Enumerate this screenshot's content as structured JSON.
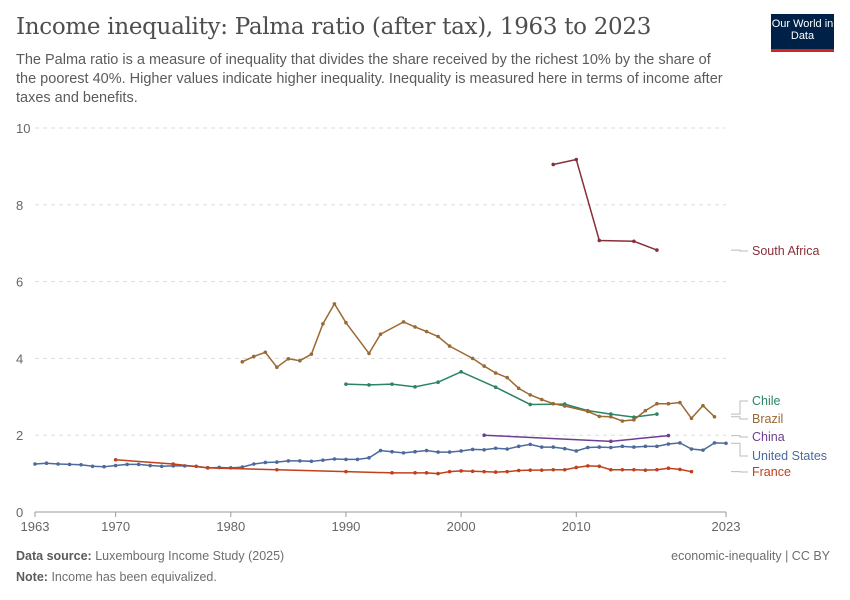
{
  "title": "Income inequality: Palma ratio (after tax), 1963 to 2023",
  "subtitle": "The Palma ratio is a measure of inequality that divides the share received by the richest 10% by the share of the poorest 40%. Higher values indicate higher inequality. Inequality is measured here in terms of income after taxes and benefits.",
  "logo": "Our World in Data",
  "footer": {
    "source_label": "Data source:",
    "source": "Luxembourg Income Study (2025)",
    "note_label": "Note:",
    "note": "Income has been equivalized.",
    "license": "economic-inequality | CC BY"
  },
  "chart_data": {
    "type": "line",
    "title": "Income inequality: Palma ratio (after tax), 1963 to 2023",
    "xlim": [
      1963,
      2023
    ],
    "ylim": [
      0,
      10
    ],
    "x_ticks": [
      "1963",
      "1970",
      "1980",
      "1990",
      "2000",
      "2010",
      "2023"
    ],
    "y_ticks": [
      "0",
      "2",
      "4",
      "6",
      "8",
      "10"
    ],
    "grid": true,
    "legend": "right-labels",
    "series": [
      {
        "name": "South Africa",
        "color": "#883039",
        "points": [
          [
            2008,
            9.05
          ],
          [
            2010,
            9.18
          ],
          [
            2012,
            7.07
          ],
          [
            2015,
            7.05
          ],
          [
            2017,
            6.82
          ]
        ]
      },
      {
        "name": "Chile",
        "color": "#2c8465",
        "points": [
          [
            1990,
            3.33
          ],
          [
            1992,
            3.31
          ],
          [
            1994,
            3.33
          ],
          [
            1996,
            3.26
          ],
          [
            1998,
            3.38
          ],
          [
            2000,
            3.65
          ],
          [
            2003,
            3.25
          ],
          [
            2006,
            2.8
          ],
          [
            2009,
            2.81
          ],
          [
            2011,
            2.64
          ],
          [
            2013,
            2.55
          ],
          [
            2015,
            2.47
          ],
          [
            2017,
            2.55
          ]
        ]
      },
      {
        "name": "Brazil",
        "color": "#9a6a33",
        "points": [
          [
            1981,
            3.91
          ],
          [
            1982,
            4.05
          ],
          [
            1983,
            4.16
          ],
          [
            1984,
            3.77
          ],
          [
            1985,
            3.99
          ],
          [
            1986,
            3.94
          ],
          [
            1987,
            4.11
          ],
          [
            1988,
            4.9
          ],
          [
            1989,
            5.42
          ],
          [
            1990,
            4.93
          ],
          [
            1992,
            4.13
          ],
          [
            1993,
            4.63
          ],
          [
            1995,
            4.95
          ],
          [
            1996,
            4.82
          ],
          [
            1997,
            4.7
          ],
          [
            1998,
            4.57
          ],
          [
            1999,
            4.32
          ],
          [
            2001,
            4.0
          ],
          [
            2002,
            3.8
          ],
          [
            2003,
            3.62
          ],
          [
            2004,
            3.5
          ],
          [
            2005,
            3.22
          ],
          [
            2006,
            3.05
          ],
          [
            2007,
            2.93
          ],
          [
            2008,
            2.82
          ],
          [
            2009,
            2.76
          ],
          [
            2011,
            2.62
          ],
          [
            2012,
            2.49
          ],
          [
            2013,
            2.48
          ],
          [
            2014,
            2.37
          ],
          [
            2015,
            2.4
          ],
          [
            2016,
            2.64
          ],
          [
            2017,
            2.82
          ],
          [
            2018,
            2.82
          ],
          [
            2019,
            2.85
          ],
          [
            2020,
            2.44
          ],
          [
            2021,
            2.77
          ],
          [
            2022,
            2.48
          ]
        ]
      },
      {
        "name": "China",
        "color": "#6d3e91",
        "points": [
          [
            2002,
            2.0
          ],
          [
            2013,
            1.84
          ],
          [
            2018,
            1.99
          ]
        ]
      },
      {
        "name": "United States",
        "color": "#4c6a9c",
        "points": [
          [
            1963,
            1.25
          ],
          [
            1964,
            1.27
          ],
          [
            1965,
            1.25
          ],
          [
            1966,
            1.24
          ],
          [
            1967,
            1.23
          ],
          [
            1968,
            1.19
          ],
          [
            1969,
            1.18
          ],
          [
            1970,
            1.21
          ],
          [
            1971,
            1.24
          ],
          [
            1972,
            1.24
          ],
          [
            1973,
            1.21
          ],
          [
            1974,
            1.19
          ],
          [
            1975,
            1.2
          ],
          [
            1976,
            1.2
          ],
          [
            1977,
            1.19
          ],
          [
            1978,
            1.15
          ],
          [
            1979,
            1.16
          ],
          [
            1980,
            1.15
          ],
          [
            1981,
            1.17
          ],
          [
            1982,
            1.25
          ],
          [
            1983,
            1.29
          ],
          [
            1984,
            1.3
          ],
          [
            1985,
            1.33
          ],
          [
            1986,
            1.33
          ],
          [
            1987,
            1.32
          ],
          [
            1988,
            1.35
          ],
          [
            1989,
            1.38
          ],
          [
            1990,
            1.37
          ],
          [
            1991,
            1.37
          ],
          [
            1992,
            1.41
          ],
          [
            1993,
            1.6
          ],
          [
            1994,
            1.57
          ],
          [
            1995,
            1.54
          ],
          [
            1996,
            1.57
          ],
          [
            1997,
            1.6
          ],
          [
            1998,
            1.56
          ],
          [
            1999,
            1.56
          ],
          [
            2000,
            1.59
          ],
          [
            2001,
            1.63
          ],
          [
            2002,
            1.62
          ],
          [
            2003,
            1.66
          ],
          [
            2004,
            1.64
          ],
          [
            2005,
            1.71
          ],
          [
            2006,
            1.76
          ],
          [
            2007,
            1.69
          ],
          [
            2008,
            1.69
          ],
          [
            2009,
            1.65
          ],
          [
            2010,
            1.59
          ],
          [
            2011,
            1.68
          ],
          [
            2012,
            1.69
          ],
          [
            2013,
            1.68
          ],
          [
            2014,
            1.71
          ],
          [
            2015,
            1.69
          ],
          [
            2016,
            1.71
          ],
          [
            2017,
            1.71
          ],
          [
            2018,
            1.77
          ],
          [
            2019,
            1.8
          ],
          [
            2020,
            1.64
          ],
          [
            2021,
            1.61
          ],
          [
            2022,
            1.8
          ],
          [
            2023,
            1.79
          ]
        ]
      },
      {
        "name": "France",
        "color": "#c0401c",
        "points": [
          [
            1970,
            1.36
          ],
          [
            1975,
            1.25
          ],
          [
            1978,
            1.15
          ],
          [
            1984,
            1.1
          ],
          [
            1990,
            1.05
          ],
          [
            1994,
            1.02
          ],
          [
            1996,
            1.02
          ],
          [
            1997,
            1.02
          ],
          [
            1998,
            1.0
          ],
          [
            1999,
            1.05
          ],
          [
            2000,
            1.07
          ],
          [
            2001,
            1.06
          ],
          [
            2002,
            1.05
          ],
          [
            2003,
            1.04
          ],
          [
            2004,
            1.05
          ],
          [
            2005,
            1.08
          ],
          [
            2006,
            1.09
          ],
          [
            2007,
            1.09
          ],
          [
            2008,
            1.1
          ],
          [
            2009,
            1.1
          ],
          [
            2010,
            1.16
          ],
          [
            2011,
            1.2
          ],
          [
            2012,
            1.19
          ],
          [
            2013,
            1.1
          ],
          [
            2014,
            1.1
          ],
          [
            2015,
            1.1
          ],
          [
            2016,
            1.09
          ],
          [
            2017,
            1.1
          ],
          [
            2018,
            1.14
          ],
          [
            2019,
            1.11
          ],
          [
            2020,
            1.05
          ]
        ]
      }
    ]
  }
}
